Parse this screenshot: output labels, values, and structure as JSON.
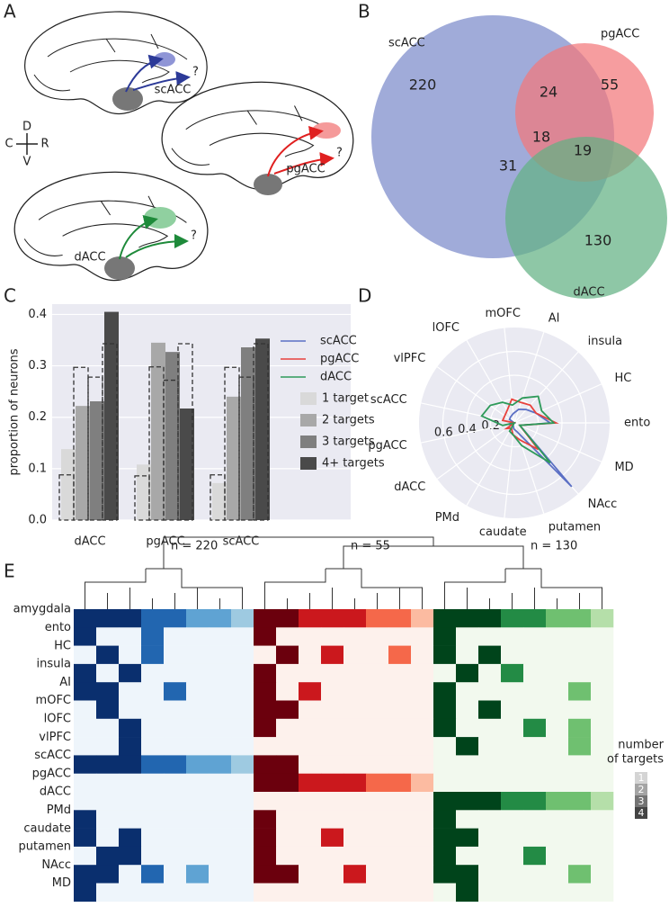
{
  "panel_labels": [
    "A",
    "B",
    "C",
    "D",
    "E"
  ],
  "diagram": {
    "regions": [
      "scACC",
      "pgACC",
      "dACC"
    ],
    "unknown_marker": "?",
    "compass": {
      "up": "D",
      "down": "V",
      "left": "C",
      "right": "R"
    }
  },
  "chart_data": [
    {
      "type": "venn",
      "sets": [
        {
          "name": "scACC",
          "color": "#7b8bcb"
        },
        {
          "name": "pgACC",
          "color": "#f2777a"
        },
        {
          "name": "dACC",
          "color": "#63b184"
        }
      ],
      "values": [
        220,
        55,
        130,
        24,
        19,
        31,
        18
      ]
    },
    {
      "type": "bar",
      "ylabel": "proportion of neurons",
      "categories": [
        "dACC",
        "pgACC",
        "scACC"
      ],
      "series": [
        {
          "name": "1 target",
          "color": "#d9d9d9",
          "values": [
            0.138,
            0.108,
            0.072
          ],
          "dashed_values": [
            0.088,
            0.086,
            0.088
          ]
        },
        {
          "name": "2 targets",
          "color": "#a8a8a8",
          "values": [
            0.222,
            0.345,
            0.24
          ],
          "dashed_values": [
            0.297,
            0.298,
            0.297
          ]
        },
        {
          "name": "3 targets",
          "color": "#7f7f7f",
          "values": [
            0.231,
            0.327,
            0.336
          ],
          "dashed_values": [
            0.278,
            0.272,
            0.278
          ]
        },
        {
          "name": "4+ targets",
          "color": "#4a4a4a",
          "values": [
            0.405,
            0.217,
            0.353
          ],
          "dashed_values": [
            0.343,
            0.343,
            0.343
          ]
        }
      ],
      "ylim": [
        0,
        0.42
      ],
      "yticks": [
        {
          "value": 0,
          "label": "0.0"
        },
        0.1,
        0.2,
        0.3,
        0.4
      ],
      "grid": true
    },
    {
      "type": "radar",
      "categories": [
        "ento",
        "HC",
        "insula",
        "AI",
        "mOFC",
        "lOFC",
        "vlPFC",
        "scACC",
        "pgACC",
        "dACC",
        "PMd",
        "caudate",
        "putamen",
        "NAcc",
        "MD"
      ],
      "series": [
        {
          "name": "scACC",
          "color": "#5b6fc4",
          "values": [
            0.3,
            0.2,
            0.15,
            0.12,
            0.08,
            0.06,
            0.05,
            0,
            0.05,
            0.03,
            0.02,
            0.05,
            0.08,
            0.72,
            0.05
          ]
        },
        {
          "name": "pgACC",
          "color": "#e8413c",
          "values": [
            0.35,
            0.2,
            0.2,
            0.18,
            0.2,
            0.12,
            0.1,
            0.1,
            0,
            0.08,
            0.05,
            0.1,
            0.15,
            0.3,
            0.05
          ]
        },
        {
          "name": "dACC",
          "color": "#2e9a5a",
          "values": [
            0.33,
            0.25,
            0.3,
            0.22,
            0.15,
            0.2,
            0.25,
            0.28,
            0.1,
            0,
            0.08,
            0.1,
            0.2,
            0.45,
            0.05
          ]
        }
      ],
      "rlim": [
        0,
        0.8
      ],
      "rticks": [
        0.2,
        0.4,
        0.6
      ]
    },
    {
      "type": "heatmap",
      "row_labels": [
        "amygdala",
        "ento",
        "HC",
        "insula",
        "AI",
        "mOFC",
        "lOFC",
        "vlPFC",
        "scACC",
        "pgACC",
        "dACC",
        "PMd",
        "caudate",
        "putamen",
        "NAcc",
        "MD"
      ],
      "clusters": [
        {
          "label": "n = 220",
          "colors": [
            "#9ecae1",
            "#5fa3d3",
            "#2266b0",
            "#0a2f6e"
          ],
          "background": "#eef5fb"
        },
        {
          "label": "n = 55",
          "colors": [
            "#fcbba1",
            "#f5684a",
            "#cb181d",
            "#6b000d"
          ],
          "background": "#fdf1ec"
        },
        {
          "label": "n = 130",
          "colors": [
            "#b5dfa9",
            "#6fc070",
            "#238b45",
            "#00441b"
          ],
          "background": "#f2f9ee"
        }
      ],
      "matrix": [
        [
          4,
          4,
          4,
          3,
          3,
          2,
          2,
          1,
          4,
          4,
          3,
          3,
          3,
          2,
          2,
          1,
          4,
          4,
          4,
          3,
          3,
          2,
          2,
          1
        ],
        [
          4,
          0,
          0,
          3,
          0,
          0,
          0,
          0,
          4,
          0,
          0,
          0,
          0,
          0,
          0,
          0,
          4,
          0,
          0,
          0,
          0,
          0,
          0,
          0
        ],
        [
          0,
          4,
          0,
          3,
          0,
          0,
          0,
          0,
          0,
          4,
          0,
          3,
          0,
          0,
          2,
          0,
          4,
          0,
          4,
          0,
          0,
          0,
          0,
          0
        ],
        [
          4,
          0,
          4,
          0,
          0,
          0,
          0,
          0,
          4,
          0,
          0,
          0,
          0,
          0,
          0,
          0,
          0,
          4,
          0,
          3,
          0,
          0,
          0,
          0
        ],
        [
          4,
          4,
          0,
          0,
          3,
          0,
          0,
          0,
          4,
          0,
          3,
          0,
          0,
          0,
          0,
          0,
          4,
          0,
          0,
          0,
          0,
          0,
          2,
          0
        ],
        [
          0,
          4,
          0,
          0,
          0,
          0,
          0,
          0,
          4,
          4,
          0,
          0,
          0,
          0,
          0,
          0,
          4,
          0,
          4,
          0,
          0,
          0,
          0,
          0
        ],
        [
          0,
          0,
          4,
          0,
          0,
          0,
          0,
          0,
          4,
          0,
          0,
          0,
          0,
          0,
          0,
          0,
          4,
          0,
          0,
          0,
          3,
          0,
          2,
          0
        ],
        [
          0,
          0,
          4,
          0,
          0,
          0,
          0,
          0,
          0,
          0,
          0,
          0,
          0,
          0,
          0,
          0,
          0,
          4,
          0,
          0,
          0,
          0,
          2,
          0
        ],
        [
          4,
          4,
          4,
          3,
          3,
          2,
          2,
          1,
          4,
          4,
          0,
          0,
          0,
          0,
          0,
          0,
          0,
          0,
          0,
          0,
          0,
          0,
          0,
          0
        ],
        [
          0,
          0,
          0,
          0,
          0,
          0,
          0,
          0,
          4,
          4,
          3,
          3,
          3,
          2,
          2,
          1,
          0,
          0,
          0,
          0,
          0,
          0,
          0,
          0
        ],
        [
          0,
          0,
          0,
          0,
          0,
          0,
          0,
          0,
          0,
          0,
          0,
          0,
          0,
          0,
          0,
          0,
          4,
          4,
          4,
          3,
          3,
          2,
          2,
          1
        ],
        [
          4,
          0,
          0,
          0,
          0,
          0,
          0,
          0,
          4,
          0,
          0,
          0,
          0,
          0,
          0,
          0,
          4,
          0,
          0,
          0,
          0,
          0,
          0,
          0
        ],
        [
          4,
          0,
          4,
          0,
          0,
          0,
          0,
          0,
          4,
          0,
          0,
          3,
          0,
          0,
          0,
          0,
          4,
          4,
          0,
          0,
          0,
          0,
          0,
          0
        ],
        [
          0,
          4,
          4,
          0,
          0,
          0,
          0,
          0,
          4,
          0,
          0,
          0,
          0,
          0,
          0,
          0,
          4,
          0,
          0,
          0,
          3,
          0,
          0,
          0
        ],
        [
          4,
          4,
          0,
          3,
          0,
          2,
          0,
          0,
          4,
          4,
          0,
          0,
          3,
          0,
          0,
          0,
          4,
          4,
          0,
          0,
          0,
          0,
          2,
          0
        ],
        [
          4,
          0,
          0,
          0,
          0,
          0,
          0,
          0,
          0,
          0,
          0,
          0,
          0,
          0,
          0,
          0,
          0,
          4,
          0,
          0,
          0,
          0,
          0,
          0
        ]
      ],
      "legend_title": [
        "number",
        "of targets"
      ],
      "legend_values": [
        1,
        2,
        3,
        4
      ],
      "legend_colors": [
        "#d4d4d4",
        "#a4a4a4",
        "#747474",
        "#444444"
      ]
    }
  ]
}
